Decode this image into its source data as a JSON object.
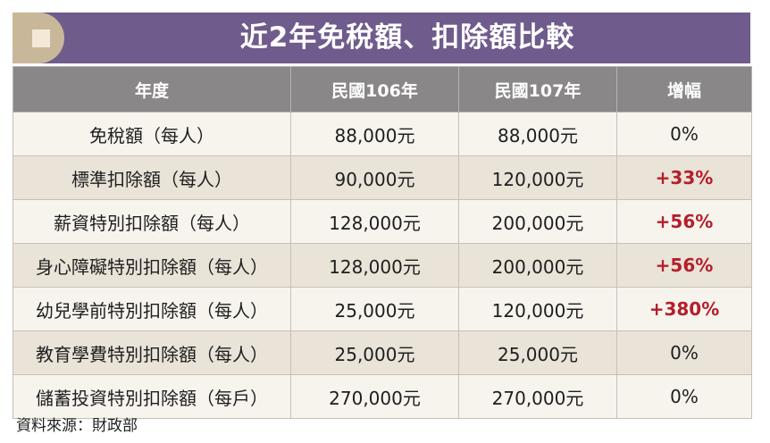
{
  "title": "近2年免稅額、扣除額比較",
  "header": [
    "年度",
    "民國106年",
    "民國107年",
    "增幅"
  ],
  "rows": [
    {
      "item": "免稅額（每人）",
      "y106": "88,000元",
      "y107": "88,000元",
      "growth": "0%",
      "up": false
    },
    {
      "item": "標準扣除額（每人）",
      "y106": "90,000元",
      "y107": "120,000元",
      "growth": "+33%",
      "up": true
    },
    {
      "item": "薪資特別扣除額（每人）",
      "y106": "128,000元",
      "y107": "200,000元",
      "growth": "+56%",
      "up": true
    },
    {
      "item": "身心障礙特別扣除額（每人）",
      "y106": "128,000元",
      "y107": "200,000元",
      "growth": "+56%",
      "up": true
    },
    {
      "item": "幼兒學前特別扣除額（每人）",
      "y106": "25,000元",
      "y107": "120,000元",
      "growth": "+380%",
      "up": true
    },
    {
      "item": "教育學費特別扣除額（每人）",
      "y106": "25,000元",
      "y107": "25,000元",
      "growth": "0%",
      "up": false
    },
    {
      "item": "儲蓄投資特別扣除額（每戶）",
      "y106": "270,000元",
      "y107": "270,000元",
      "growth": "0%",
      "up": false
    }
  ],
  "source": "資料來源：財政部",
  "colors": {
    "title_bg": "#6f5b8c",
    "header_bg": "#8a8789",
    "increase": "#b41f2a"
  }
}
